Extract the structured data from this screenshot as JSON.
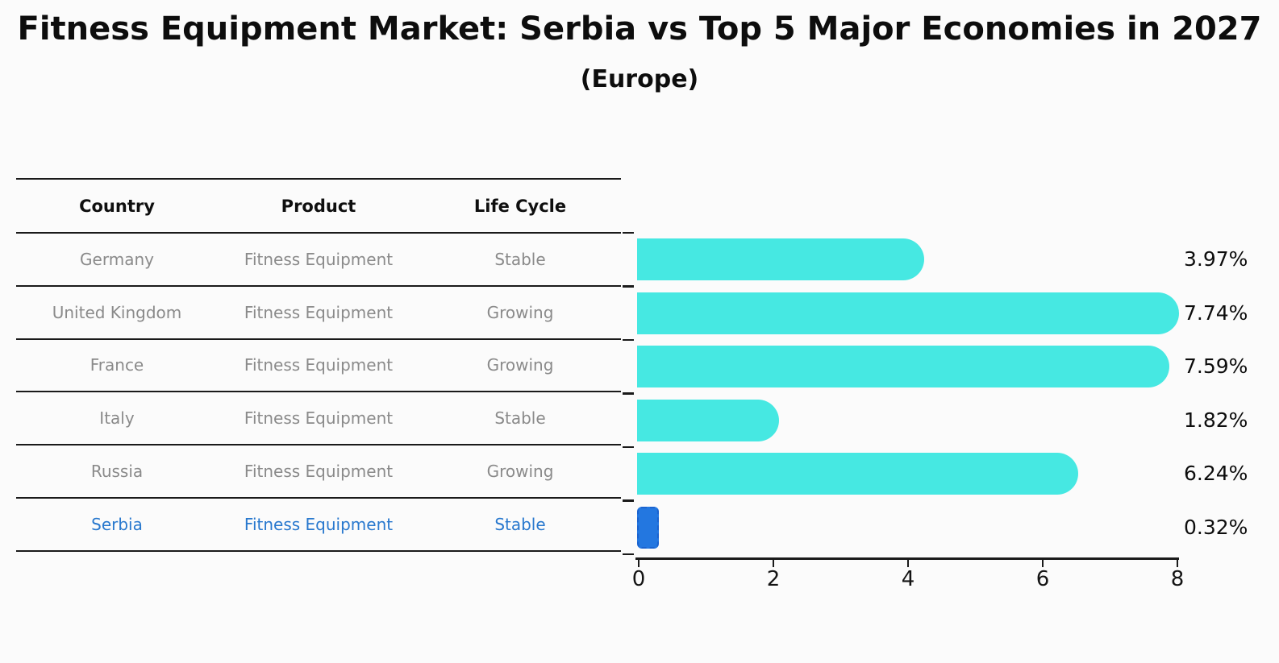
{
  "title": "Fitness Equipment Market: Serbia vs Top 5 Major Economies in 2027",
  "subtitle": "(Europe)",
  "table": {
    "headers": [
      "Country",
      "Product",
      "Life Cycle"
    ],
    "rows": [
      {
        "country": "Germany",
        "product": "Fitness Equipment",
        "life_cycle": "Stable",
        "highlight": false
      },
      {
        "country": "United Kingdom",
        "product": "Fitness Equipment",
        "life_cycle": "Growing",
        "highlight": false
      },
      {
        "country": "France",
        "product": "Fitness Equipment",
        "life_cycle": "Growing",
        "highlight": false
      },
      {
        "country": "Italy",
        "product": "Fitness Equipment",
        "life_cycle": "Stable",
        "highlight": false
      },
      {
        "country": "Russia",
        "product": "Fitness Equipment",
        "life_cycle": "Growing",
        "highlight": false
      },
      {
        "country": "Serbia",
        "product": "Fitness Equipment",
        "life_cycle": "Stable",
        "highlight": true
      }
    ]
  },
  "chart_data": {
    "type": "bar",
    "orientation": "horizontal",
    "title": "Fitness Equipment Market: Serbia vs Top 5 Major Economies in 2027 (Europe)",
    "categories": [
      "Germany",
      "United Kingdom",
      "France",
      "Italy",
      "Russia",
      "Serbia"
    ],
    "values": [
      3.97,
      7.74,
      7.59,
      1.82,
      6.24,
      0.32
    ],
    "value_labels": [
      "3.97%",
      "7.74%",
      "7.59%",
      "1.82%",
      "6.24%",
      "0.32%"
    ],
    "xlabel": "",
    "ylabel": "",
    "xlim": [
      0,
      8
    ],
    "x_ticks": [
      0,
      2,
      4,
      6,
      8
    ],
    "grid": false,
    "legend": false,
    "bar_color": "#46e8e2",
    "highlight_color": "#2377e0",
    "highlight_border_color": "#1b63cf",
    "highlight_index": 5,
    "highlight_text_color": "#2878ce"
  }
}
